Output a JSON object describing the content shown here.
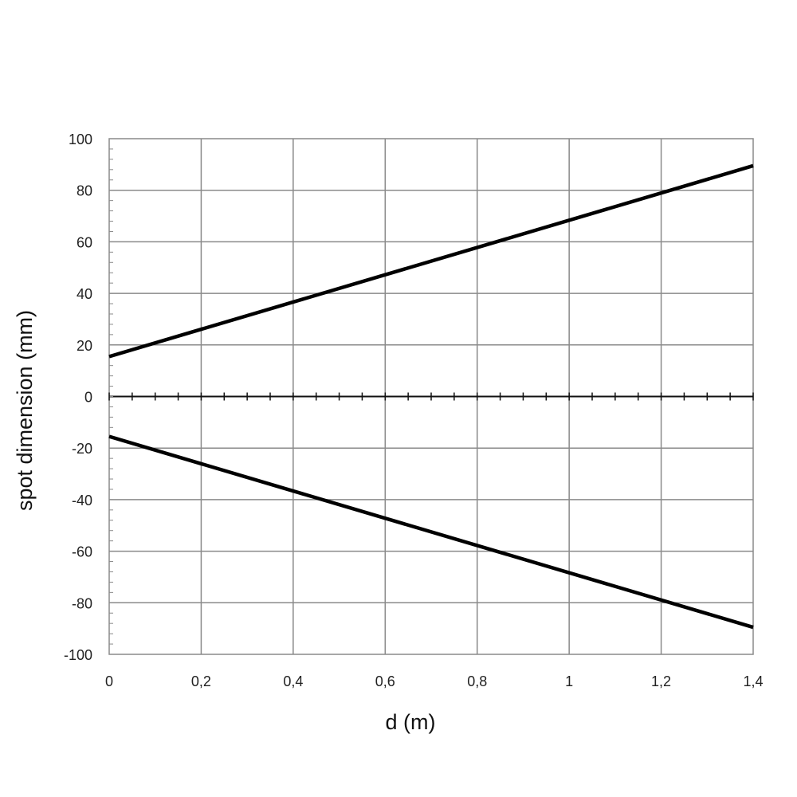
{
  "chart_data": {
    "type": "line",
    "title": "",
    "xlabel": "d (m)",
    "ylabel": "spot dimension (mm)",
    "xlim": [
      0,
      1.4
    ],
    "ylim": [
      -100,
      100
    ],
    "x_ticks": [
      0,
      0.2,
      0.4,
      0.6,
      0.8,
      1.0,
      1.2,
      1.4
    ],
    "x_tick_labels": [
      "0",
      "0,2",
      "0,4",
      "0,6",
      "0,8",
      "1",
      "1,2",
      "1,4"
    ],
    "y_ticks": [
      100,
      80,
      60,
      40,
      20,
      0,
      -20,
      -40,
      -60,
      -80,
      -100
    ],
    "y_tick_labels": [
      "100",
      "80",
      "60",
      "40",
      "20",
      "0",
      "-20",
      "-40",
      "-60",
      "-80",
      "-100"
    ],
    "grid": true,
    "legend": "none",
    "series": [
      {
        "x": [
          0,
          1.4
        ],
        "y": [
          15.5,
          89.5
        ],
        "color": "#000000"
      },
      {
        "x": [
          0,
          1.4
        ],
        "y": [
          -15.5,
          -89.5
        ],
        "color": "#000000"
      }
    ]
  }
}
